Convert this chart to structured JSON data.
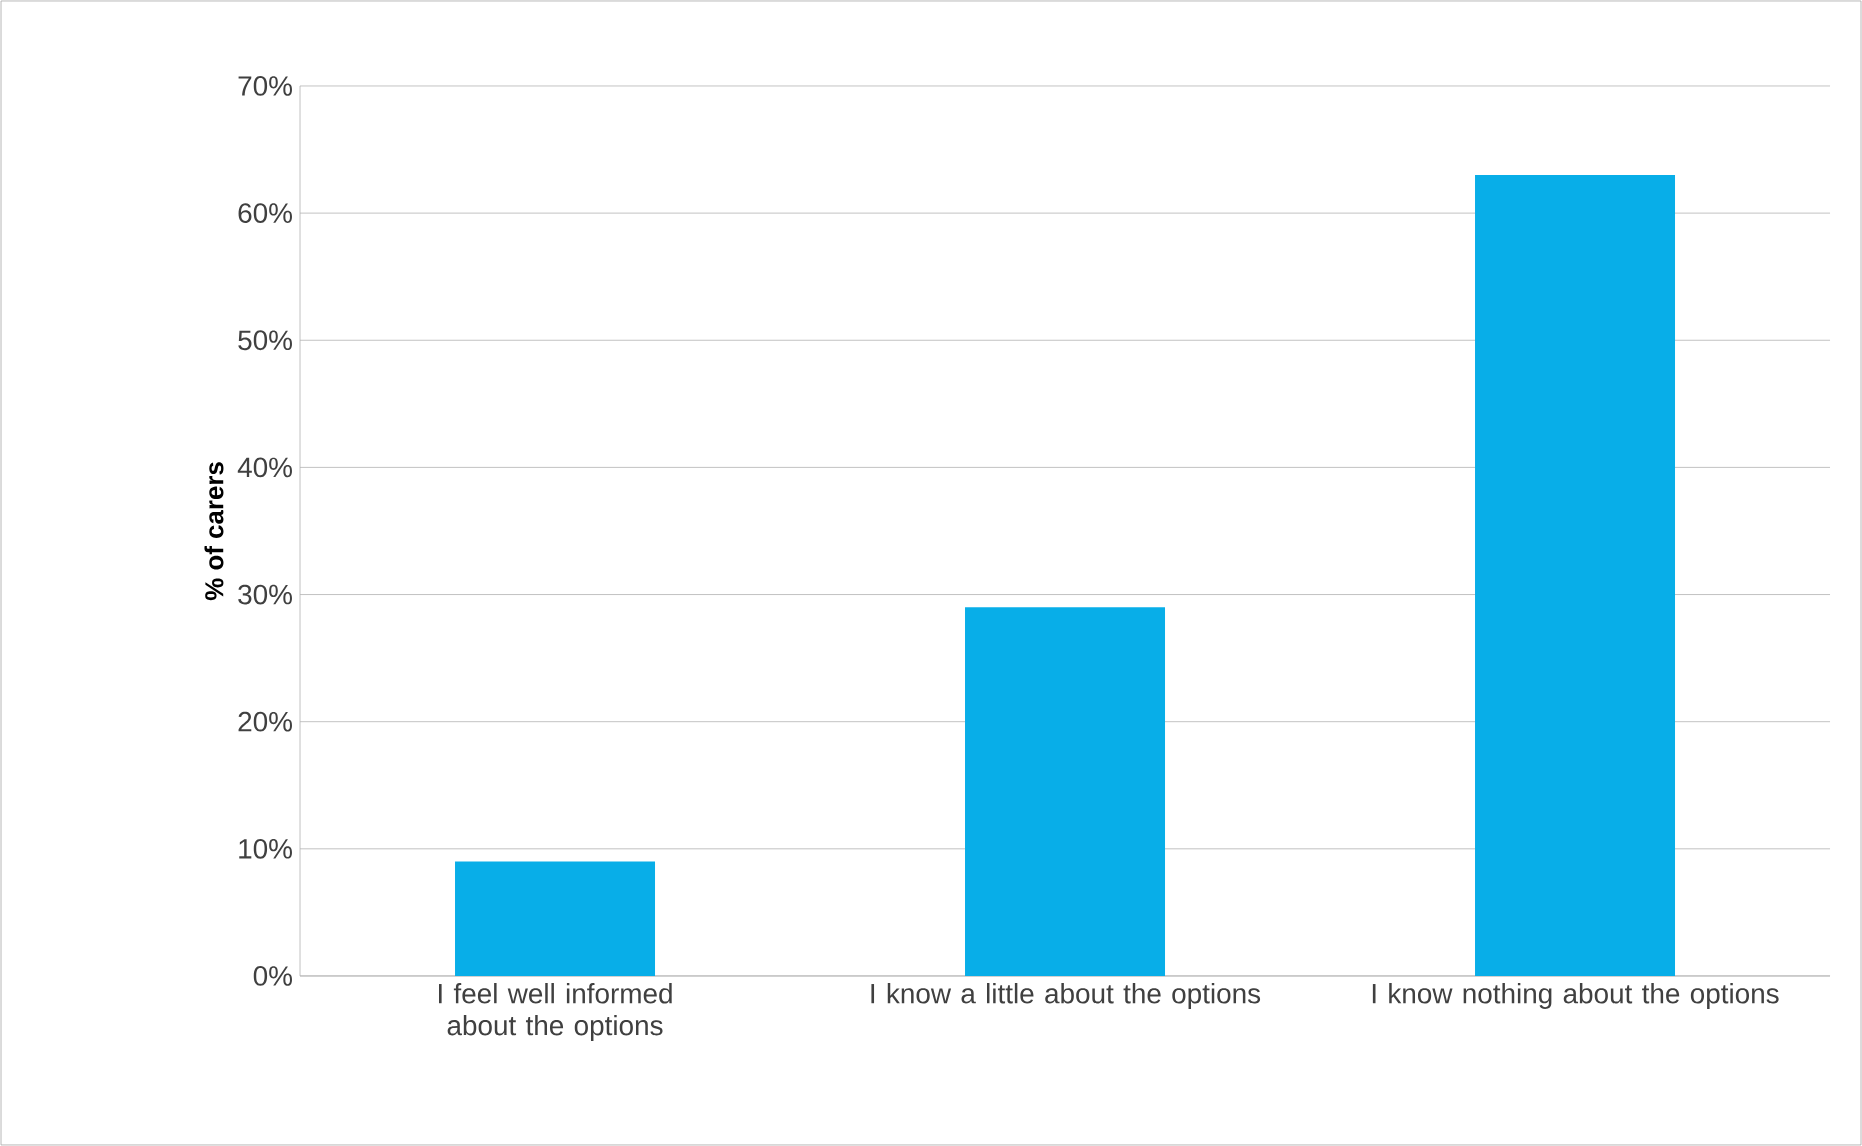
{
  "chart_data": {
    "type": "bar",
    "ylabel": "% of carers",
    "categories": [
      "I feel well informed about the options",
      "I know a little about the options",
      "I know nothing about the options"
    ],
    "values": [
      9,
      29,
      63
    ],
    "color": "#08aee8",
    "ylim": [
      0,
      70
    ],
    "yticks": [
      {
        "value": 0,
        "label": "0%"
      },
      {
        "value": 10,
        "label": "10%"
      },
      {
        "value": 20,
        "label": "20%"
      },
      {
        "value": 30,
        "label": "30%"
      },
      {
        "value": 40,
        "label": "40%"
      },
      {
        "value": 50,
        "label": "50%"
      },
      {
        "value": 60,
        "label": "60%"
      },
      {
        "value": 70,
        "label": "70%"
      }
    ],
    "grid": "y"
  }
}
